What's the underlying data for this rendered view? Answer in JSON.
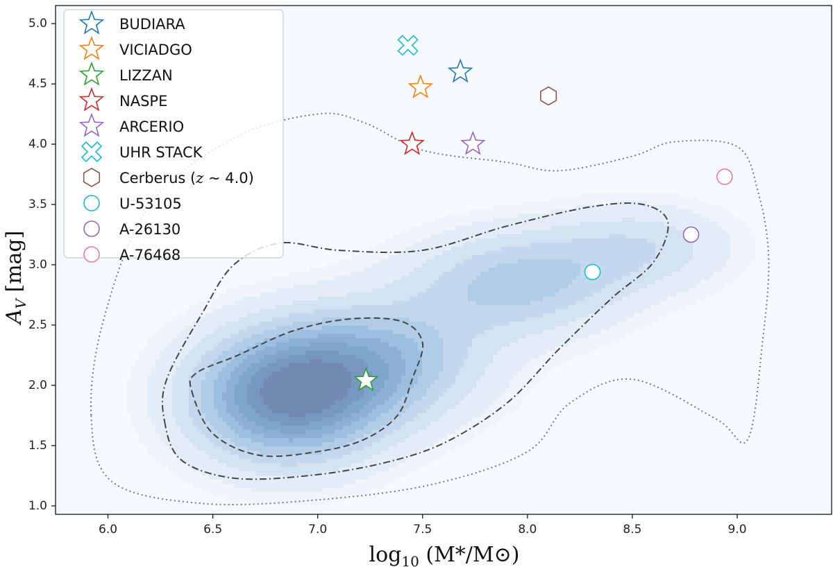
{
  "chart_data": {
    "type": "scatter",
    "title": "",
    "xlabel": "log10(M*/M⊙)",
    "xlabel_parts": {
      "base": "log",
      "sub": "10",
      "rest": " (M*/M⊙)"
    },
    "ylabel": "A_V [mag]",
    "ylabel_parts": {
      "main": "A",
      "sub": "V",
      "rest": " [mag]"
    },
    "xlim": [
      5.75,
      9.45
    ],
    "ylim": [
      0.93,
      5.15
    ],
    "x_ticks": [
      6.0,
      6.5,
      7.0,
      7.5,
      8.0,
      8.5,
      9.0
    ],
    "x_tick_labels": [
      "6.0",
      "6.5",
      "7.0",
      "7.5",
      "8.0",
      "8.5",
      "9.0"
    ],
    "y_ticks": [
      1.0,
      1.5,
      2.0,
      2.5,
      3.0,
      3.5,
      4.0,
      4.5,
      5.0
    ],
    "y_tick_labels": [
      "1.0",
      "1.5",
      "2.0",
      "2.5",
      "3.0",
      "3.5",
      "4.0",
      "4.5",
      "5.0"
    ],
    "grid": false,
    "legend_position": "top-left",
    "density": {
      "description": "KDE density of sample",
      "colormap": "Blues",
      "peaks": [
        {
          "x": 6.85,
          "y": 1.9,
          "weight": 1.0,
          "sx": 0.32,
          "sy": 0.38
        },
        {
          "x": 7.3,
          "y": 2.2,
          "weight": 0.55,
          "sx": 0.35,
          "sy": 0.35
        },
        {
          "x": 7.95,
          "y": 2.85,
          "weight": 0.5,
          "sx": 0.35,
          "sy": 0.3
        },
        {
          "x": 8.55,
          "y": 3.15,
          "weight": 0.3,
          "sx": 0.3,
          "sy": 0.25
        }
      ],
      "contours": [
        {
          "style": "dashed",
          "color": "#444444",
          "points": [
            [
              6.4,
              1.95
            ],
            [
              6.5,
              1.6
            ],
            [
              6.72,
              1.42
            ],
            [
              7.0,
              1.45
            ],
            [
              7.22,
              1.55
            ],
            [
              7.38,
              1.75
            ],
            [
              7.45,
              2.05
            ],
            [
              7.5,
              2.35
            ],
            [
              7.4,
              2.53
            ],
            [
              7.15,
              2.55
            ],
            [
              6.88,
              2.45
            ],
            [
              6.62,
              2.25
            ],
            [
              6.42,
              2.1
            ]
          ]
        },
        {
          "style": "dashdot",
          "color": "#444444",
          "points": [
            [
              6.27,
              1.7
            ],
            [
              6.35,
              1.38
            ],
            [
              6.6,
              1.23
            ],
            [
              6.95,
              1.25
            ],
            [
              7.3,
              1.35
            ],
            [
              7.6,
              1.52
            ],
            [
              7.9,
              1.85
            ],
            [
              8.15,
              2.3
            ],
            [
              8.4,
              2.72
            ],
            [
              8.6,
              3.02
            ],
            [
              8.67,
              3.35
            ],
            [
              8.55,
              3.5
            ],
            [
              8.3,
              3.48
            ],
            [
              7.9,
              3.32
            ],
            [
              7.5,
              3.12
            ],
            [
              7.1,
              3.12
            ],
            [
              6.82,
              3.18
            ],
            [
              6.6,
              3.0
            ],
            [
              6.45,
              2.6
            ],
            [
              6.28,
              2.05
            ]
          ]
        },
        {
          "style": "dotted",
          "color": "#777777",
          "points": [
            [
              5.92,
              1.75
            ],
            [
              6.02,
              1.2
            ],
            [
              6.45,
              1.02
            ],
            [
              7.0,
              1.05
            ],
            [
              7.55,
              1.18
            ],
            [
              8.0,
              1.45
            ],
            [
              8.2,
              1.85
            ],
            [
              8.5,
              2.05
            ],
            [
              8.9,
              1.72
            ],
            [
              9.05,
              1.55
            ],
            [
              9.12,
              2.35
            ],
            [
              9.15,
              3.05
            ],
            [
              9.1,
              3.6
            ],
            [
              9.0,
              3.98
            ],
            [
              8.7,
              4.02
            ],
            [
              8.5,
              3.9
            ],
            [
              8.15,
              3.78
            ],
            [
              7.9,
              3.85
            ],
            [
              7.5,
              3.95
            ],
            [
              7.22,
              4.18
            ],
            [
              7.0,
              4.25
            ],
            [
              6.6,
              4.05
            ],
            [
              6.2,
              3.5
            ],
            [
              5.98,
              2.55
            ]
          ]
        }
      ]
    },
    "series": [
      {
        "name": "BUDIARA",
        "marker": "star",
        "color": "#1f77b4",
        "filled": false,
        "x": [
          7.68
        ],
        "y": [
          4.6
        ]
      },
      {
        "name": "VICIADGO",
        "marker": "star",
        "color": "#ff7f0e",
        "filled": false,
        "x": [
          7.49
        ],
        "y": [
          4.47
        ]
      },
      {
        "name": "LIZZAN",
        "marker": "star",
        "color": "#2ca02c",
        "filled": false,
        "x": [
          7.23
        ],
        "y": [
          2.04
        ]
      },
      {
        "name": "NASPE",
        "marker": "star",
        "color": "#d62728",
        "filled": false,
        "x": [
          7.45
        ],
        "y": [
          4.0
        ]
      },
      {
        "name": "ARCERIO",
        "marker": "star",
        "color": "#9467bd",
        "filled": false,
        "x": [
          7.74
        ],
        "y": [
          4.0
        ]
      },
      {
        "name": "UHR STACK",
        "marker": "x-filled",
        "color": "#17becf",
        "filled": false,
        "x": [
          7.43
        ],
        "y": [
          4.82
        ]
      },
      {
        "name": "Cerberus (z ~ 4.0)",
        "legend_label_parts": {
          "pre": "Cerberus (",
          "italic": "z",
          "post": " ~ 4.0)"
        },
        "marker": "hexagon",
        "color": "#8c564b",
        "filled": false,
        "x": [
          8.1
        ],
        "y": [
          4.4
        ]
      },
      {
        "name": "U-53105",
        "marker": "circle",
        "color": "#17becf",
        "filled": false,
        "x": [
          8.31
        ],
        "y": [
          2.94
        ]
      },
      {
        "name": "A-26130",
        "marker": "circle",
        "color": "#9467bd",
        "filled": false,
        "x": [
          8.78
        ],
        "y": [
          3.25
        ]
      },
      {
        "name": "A-76468",
        "marker": "circle",
        "color": "#e377c2",
        "filled": false,
        "x": [
          8.94
        ],
        "y": [
          3.73
        ]
      }
    ]
  }
}
